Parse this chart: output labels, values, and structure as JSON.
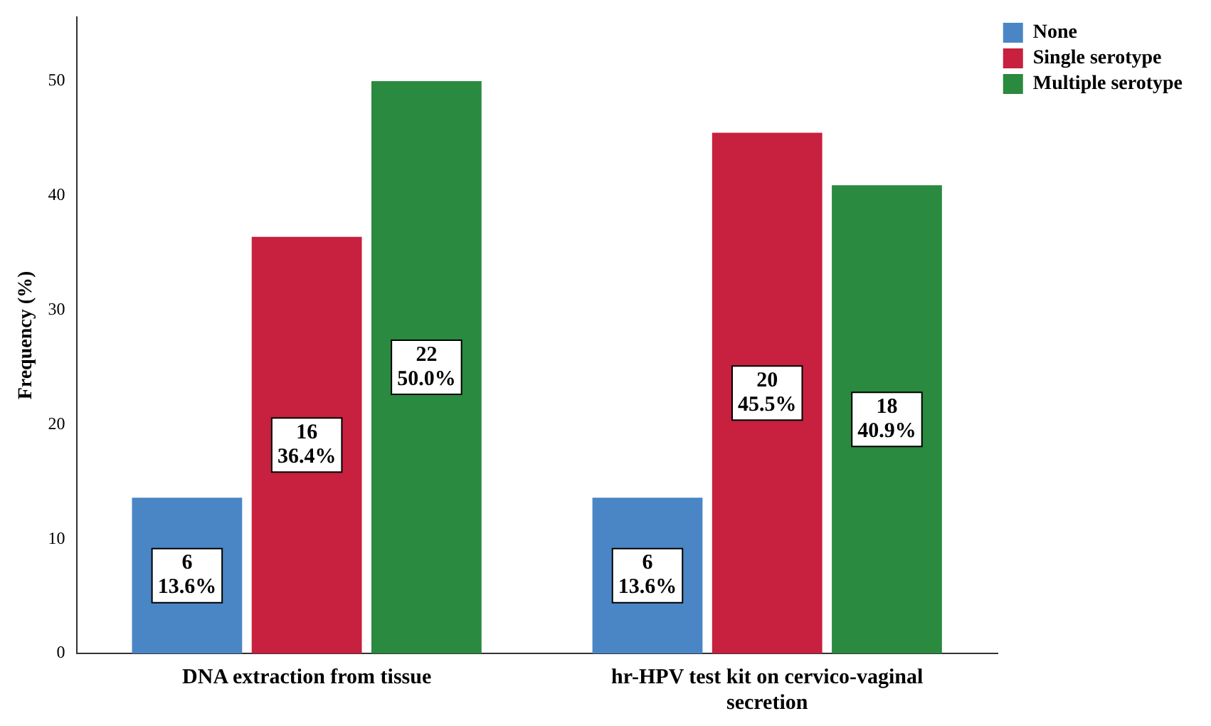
{
  "chart_data": {
    "type": "bar",
    "ylabel": "Frequency (%)",
    "categories": [
      "DNA extraction from tissue",
      "hr-HPV test kit on cervico-vaginal secretion"
    ],
    "series": [
      {
        "name": "None",
        "color": "#4a86c5",
        "values": [
          13.6,
          13.6
        ],
        "value_labels": [
          "6\n13.6%",
          "6\n13.6%"
        ]
      },
      {
        "name": "Single serotype",
        "color": "#c8203f",
        "values": [
          36.4,
          45.5
        ],
        "value_labels": [
          "16\n36.4%",
          "20\n45.5%"
        ]
      },
      {
        "name": "Multiple serotype",
        "color": "#2a8a3f",
        "values": [
          50.0,
          40.9
        ],
        "value_labels": [
          "22\n50.0%",
          "18\n40.9%"
        ]
      }
    ],
    "ylim": [
      0,
      55.6
    ],
    "yticks": [
      0,
      10,
      20,
      30,
      40,
      50
    ],
    "grid": false,
    "legend": "top right"
  }
}
